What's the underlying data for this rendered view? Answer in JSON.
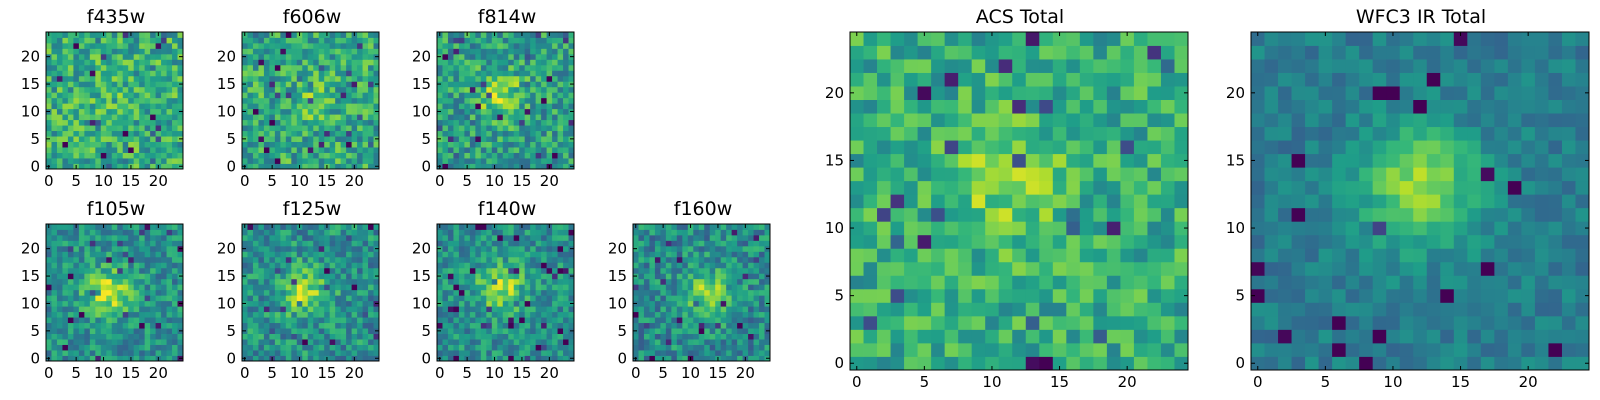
{
  "chart_data": [
    {
      "type": "heatmap",
      "title": "f435w",
      "xlim": [
        0,
        24
      ],
      "ylim": [
        0,
        24
      ],
      "xticks": [
        0,
        5,
        10,
        15,
        20
      ],
      "yticks": [
        0,
        5,
        10,
        15,
        20
      ],
      "colormap": "viridis",
      "seed": 11,
      "peak": [
        12,
        12
      ],
      "peak_strength": 0.05,
      "noise": 0.22,
      "base": 0.62
    },
    {
      "type": "heatmap",
      "title": "f606w",
      "xlim": [
        0,
        24
      ],
      "ylim": [
        0,
        24
      ],
      "xticks": [
        0,
        5,
        10,
        15,
        20
      ],
      "yticks": [
        0,
        5,
        10,
        15,
        20
      ],
      "colormap": "viridis",
      "seed": 23,
      "peak": [
        12,
        12
      ],
      "peak_strength": 0.12,
      "noise": 0.22,
      "base": 0.6
    },
    {
      "type": "heatmap",
      "title": "f814w",
      "xlim": [
        0,
        24
      ],
      "ylim": [
        0,
        24
      ],
      "xticks": [
        0,
        5,
        10,
        15,
        20
      ],
      "yticks": [
        0,
        5,
        10,
        15,
        20
      ],
      "colormap": "viridis",
      "seed": 37,
      "peak": [
        11,
        13
      ],
      "peak_strength": 0.3,
      "noise": 0.22,
      "base": 0.55
    },
    {
      "type": "heatmap",
      "title": "f105w",
      "xlim": [
        0,
        24
      ],
      "ylim": [
        0,
        24
      ],
      "xticks": [
        0,
        5,
        10,
        15,
        20
      ],
      "yticks": [
        0,
        5,
        10,
        15,
        20
      ],
      "colormap": "viridis",
      "seed": 41,
      "peak": [
        11,
        12
      ],
      "peak_strength": 0.4,
      "noise": 0.18,
      "base": 0.5
    },
    {
      "type": "heatmap",
      "title": "f125w",
      "xlim": [
        0,
        24
      ],
      "ylim": [
        0,
        24
      ],
      "xticks": [
        0,
        5,
        10,
        15,
        20
      ],
      "yticks": [
        0,
        5,
        10,
        15,
        20
      ],
      "colormap": "viridis",
      "seed": 53,
      "peak": [
        11,
        12
      ],
      "peak_strength": 0.35,
      "noise": 0.2,
      "base": 0.5
    },
    {
      "type": "heatmap",
      "title": "f140w",
      "xlim": [
        0,
        24
      ],
      "ylim": [
        0,
        24
      ],
      "xticks": [
        0,
        5,
        10,
        15,
        20
      ],
      "yticks": [
        0,
        5,
        10,
        15,
        20
      ],
      "colormap": "viridis",
      "seed": 67,
      "peak": [
        11,
        13
      ],
      "peak_strength": 0.38,
      "noise": 0.18,
      "base": 0.5
    },
    {
      "type": "heatmap",
      "title": "f160w",
      "xlim": [
        0,
        24
      ],
      "ylim": [
        0,
        24
      ],
      "xticks": [
        0,
        5,
        10,
        15,
        20
      ],
      "yticks": [
        0,
        5,
        10,
        15,
        20
      ],
      "colormap": "viridis",
      "seed": 79,
      "peak": [
        13,
        12
      ],
      "peak_strength": 0.35,
      "noise": 0.2,
      "base": 0.48
    },
    {
      "type": "heatmap",
      "title": "ACS Total",
      "xlim": [
        0,
        24
      ],
      "ylim": [
        0,
        24
      ],
      "xticks": [
        0,
        5,
        10,
        15,
        20
      ],
      "yticks": [
        0,
        5,
        10,
        15,
        20
      ],
      "colormap": "viridis",
      "seed": 97,
      "peak": [
        11,
        13
      ],
      "peak_strength": 0.2,
      "noise": 0.18,
      "base": 0.62
    },
    {
      "type": "heatmap",
      "title": "WFC3 IR Total",
      "xlim": [
        0,
        24
      ],
      "ylim": [
        0,
        24
      ],
      "xticks": [
        0,
        5,
        10,
        15,
        20
      ],
      "yticks": [
        0,
        5,
        10,
        15,
        20
      ],
      "colormap": "viridis",
      "seed": 113,
      "peak": [
        12,
        13
      ],
      "peak_strength": 0.45,
      "noise": 0.1,
      "base": 0.42
    }
  ]
}
